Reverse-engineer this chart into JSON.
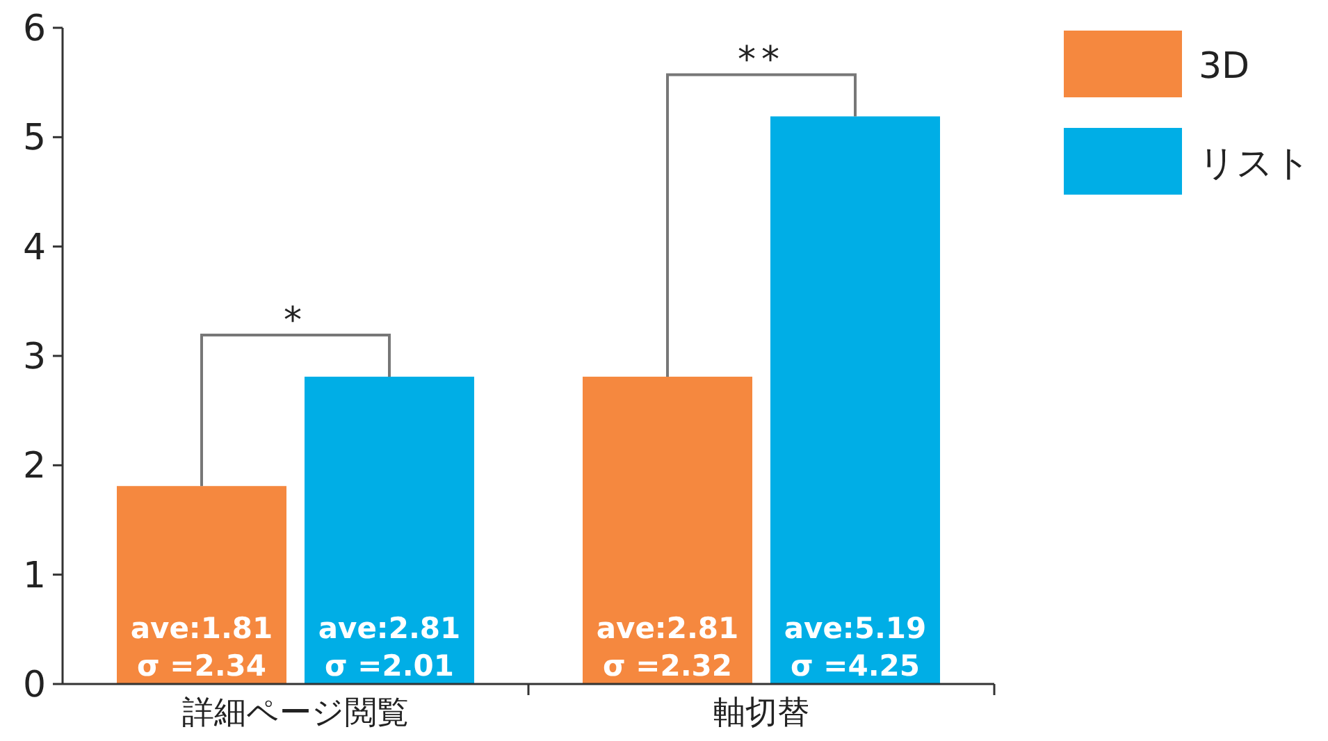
{
  "chart_data": {
    "type": "bar",
    "categories": [
      "詳細ページ閲覧",
      "軸切替"
    ],
    "series": [
      {
        "name": "3D",
        "color": "#f5883f",
        "values": [
          1.81,
          2.81
        ],
        "value_labels": [
          "ave:1.81\nσ =2.34",
          "ave:2.81\nσ =2.32"
        ]
      },
      {
        "name": "リスト",
        "color": "#00aee6",
        "values": [
          2.81,
          5.19
        ],
        "value_labels": [
          "ave:2.81\nσ =2.01",
          "ave:5.19\nσ =4.25"
        ]
      }
    ],
    "ylim": [
      0,
      6
    ],
    "yticks": [
      0,
      1,
      2,
      3,
      4,
      5,
      6
    ],
    "annotations": [
      "*",
      "**"
    ],
    "legend": "right",
    "grid": false
  }
}
